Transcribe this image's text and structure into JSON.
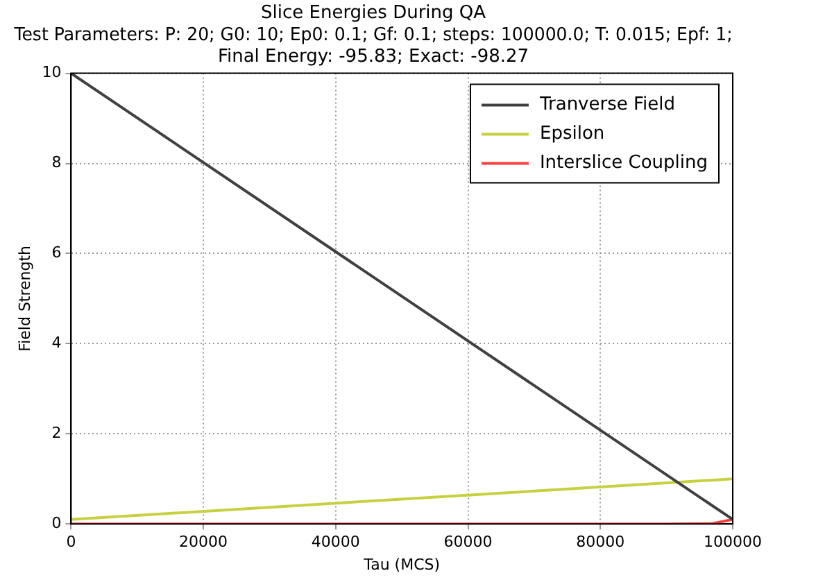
{
  "chart_data": {
    "type": "line",
    "title": "Slice Energies During QA",
    "subtitle": "Test Parameters: P: 20; G0: 10; Ep0: 0.1; Gf: 0.1; steps: 100000.0; T: 0.015; Epf: 1;\nFinal Energy: -95.83; Exact: -98.27",
    "xlabel": "Tau (MCS)",
    "ylabel": "Field Strength",
    "series": [
      {
        "name": "Tranverse Field",
        "color": "#404040",
        "x": [
          0,
          100000
        ],
        "values": [
          10,
          0.1
        ]
      },
      {
        "name": "Epsilon",
        "color": "#c8d040",
        "x": [
          0,
          100000
        ],
        "values": [
          0.1,
          1
        ]
      },
      {
        "name": "Interslice Coupling",
        "color": "#ff4040",
        "x": [
          0,
          90000,
          97000,
          100000
        ],
        "values": [
          0,
          0,
          0.01,
          0.1
        ]
      }
    ],
    "xlim": [
      0,
      100000
    ],
    "xticks": [
      0,
      20000,
      40000,
      60000,
      80000,
      100000
    ],
    "ylim": [
      0,
      10
    ],
    "yticks": [
      0,
      2,
      4,
      6,
      8,
      10
    ],
    "grid": true,
    "legend": "top right",
    "marker": "none",
    "line_style": "solid"
  }
}
